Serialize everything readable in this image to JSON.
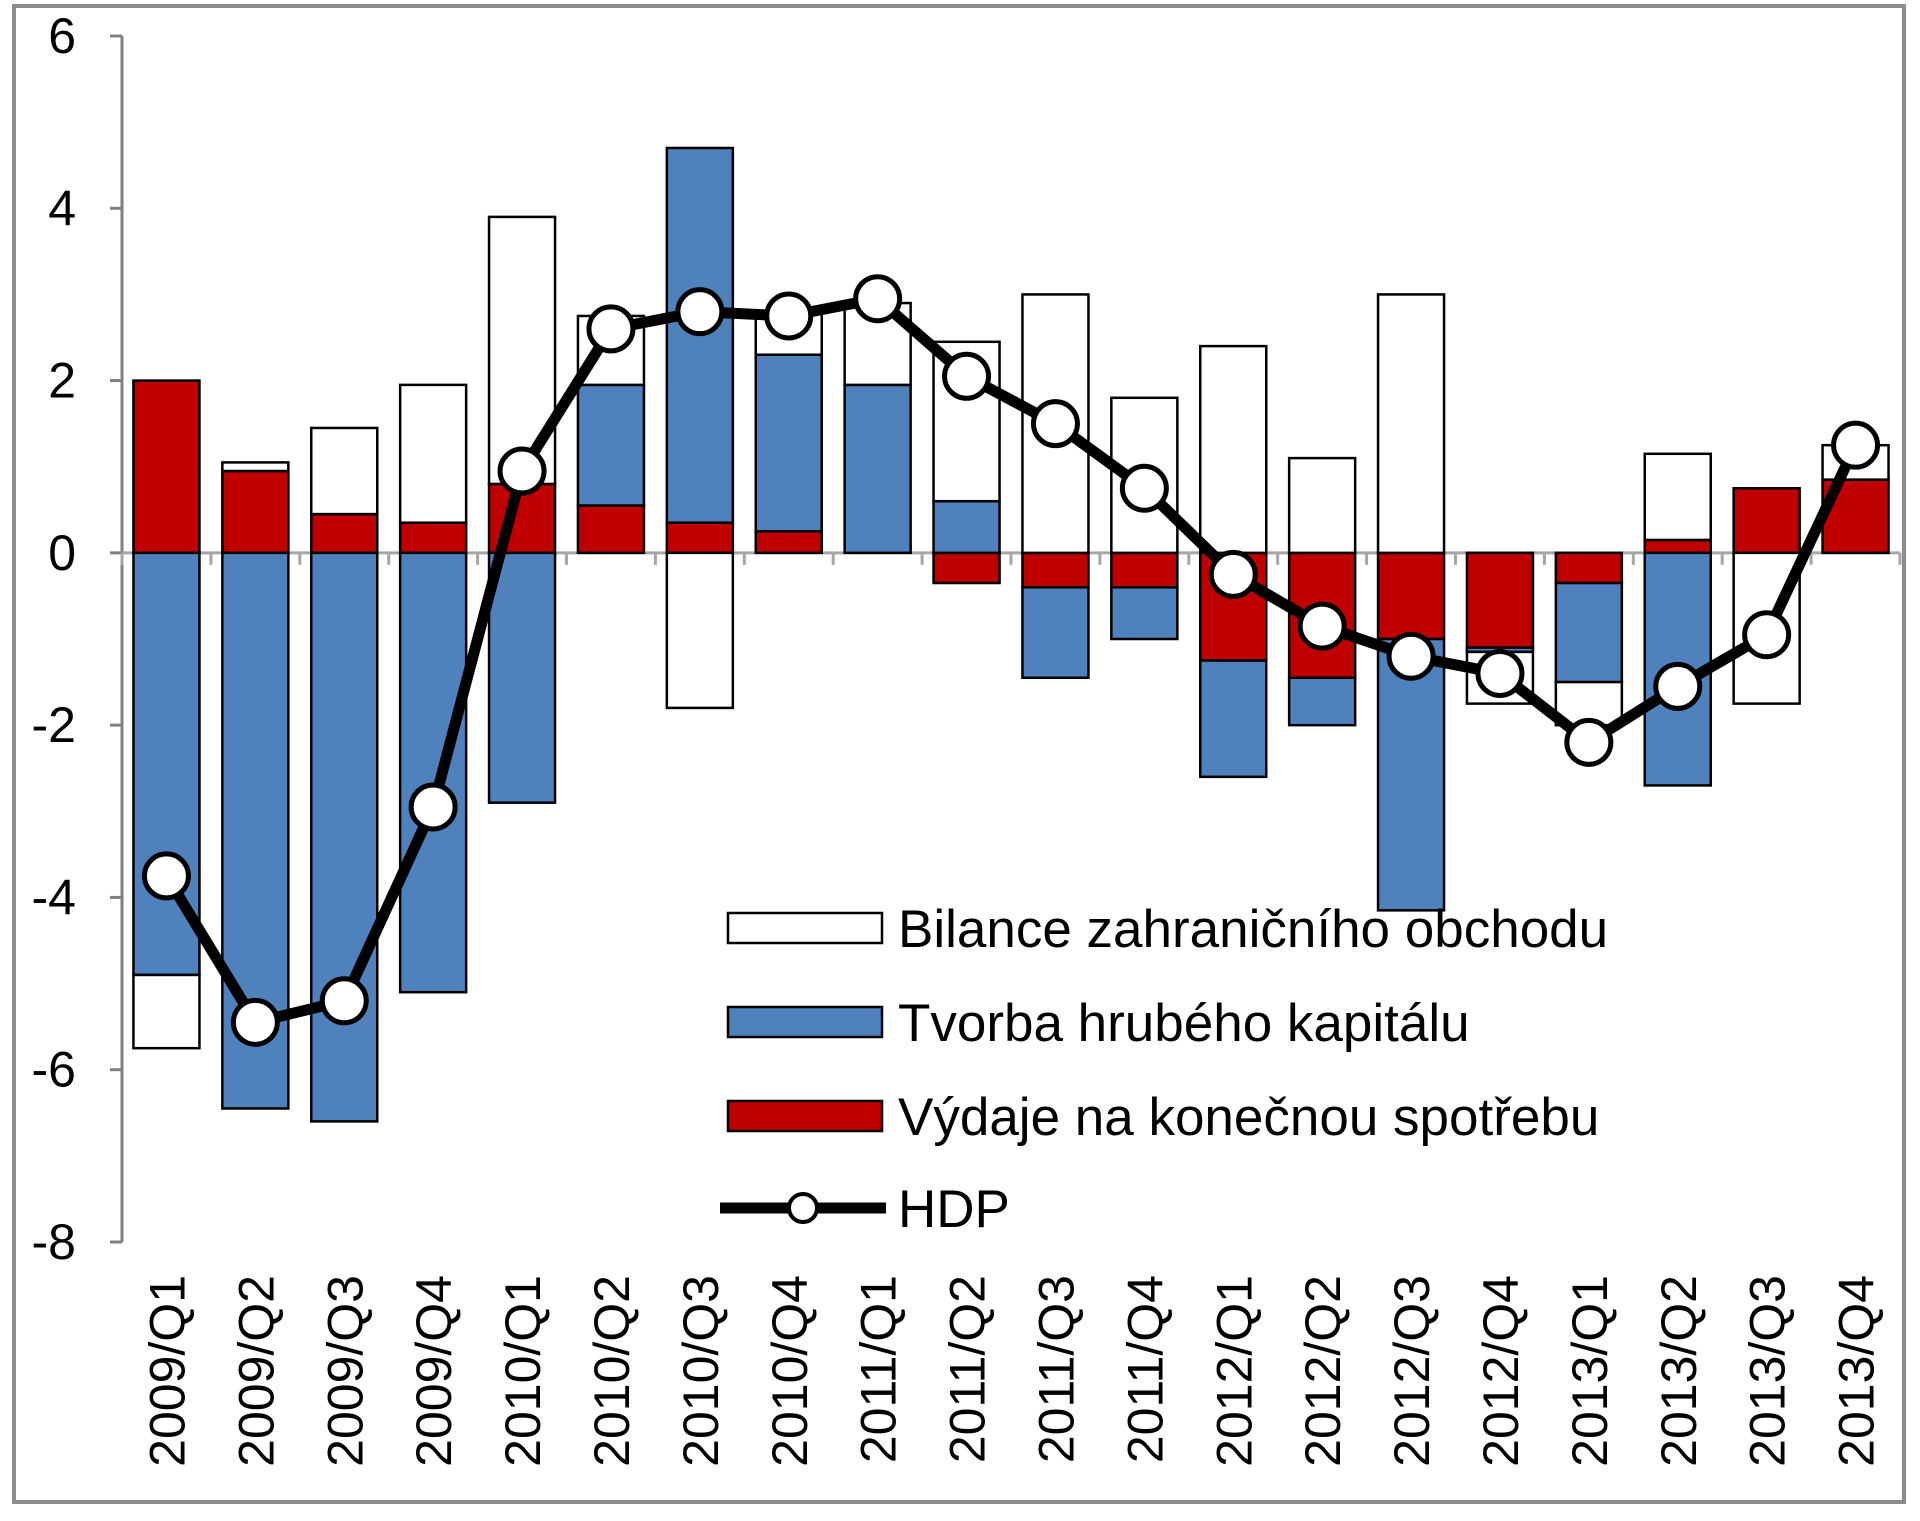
{
  "chart_data": {
    "type": "bar",
    "stacked": true,
    "categories": [
      "2009/Q1",
      "2009/Q2",
      "2009/Q3",
      "2009/Q4",
      "2010/Q1",
      "2010/Q2",
      "2010/Q3",
      "2010/Q4",
      "2011/Q1",
      "2011/Q2",
      "2011/Q3",
      "2011/Q4",
      "2012/Q1",
      "2012/Q2",
      "2012/Q3",
      "2012/Q4",
      "2013/Q1",
      "2013/Q2",
      "2013/Q3",
      "2013/Q4"
    ],
    "series": [
      {
        "name": "Výdaje na konečnou spotřebu",
        "type": "bar",
        "color": "#c00000",
        "values": [
          2.0,
          0.95,
          0.45,
          0.35,
          0.8,
          0.55,
          0.35,
          0.25,
          0.0,
          -0.35,
          -0.4,
          -0.4,
          -1.25,
          -1.45,
          -1.0,
          -1.1,
          -0.35,
          0.15,
          0.75,
          0.85
        ]
      },
      {
        "name": "Tvorba hrubého kapitálu",
        "type": "bar",
        "color": "#4f81bd",
        "values": [
          -4.9,
          -6.45,
          -6.6,
          -5.1,
          -2.9,
          1.4,
          4.35,
          2.05,
          1.95,
          0.6,
          -1.05,
          -0.6,
          -1.35,
          -0.55,
          -3.15,
          -0.05,
          -1.15,
          -2.7,
          0.0,
          0.0
        ]
      },
      {
        "name": "Bilance zahraničního obchodu",
        "type": "bar",
        "color": "#ffffff",
        "values": [
          -0.85,
          0.1,
          1.0,
          1.6,
          3.1,
          0.8,
          -1.8,
          0.5,
          0.95,
          1.85,
          3.0,
          1.8,
          2.4,
          1.1,
          3.0,
          -0.6,
          -0.5,
          1.0,
          -1.75,
          0.4
        ]
      },
      {
        "name": "HDP",
        "type": "line",
        "color": "#000000",
        "values": [
          -3.75,
          -5.45,
          -5.2,
          -2.95,
          0.95,
          2.6,
          2.8,
          2.75,
          2.95,
          2.05,
          1.5,
          0.75,
          -0.25,
          -0.85,
          -1.2,
          -1.4,
          -2.2,
          -1.55,
          -0.95,
          1.25
        ]
      }
    ],
    "title": "",
    "xlabel": "",
    "ylabel": "",
    "ylim": [
      -8,
      6
    ],
    "yticks": [
      -8,
      -6,
      -4,
      -2,
      0,
      2,
      4,
      6
    ],
    "ytick_labels": [
      "-8",
      "-6",
      "-4",
      "-2",
      "0",
      "2",
      "4",
      "6"
    ],
    "grid": false,
    "legend_position": "bottom-right inside plot",
    "legend_order": [
      "Bilance zahraničního obchodu",
      "Tvorba hrubého kapitálu",
      "Výdaje na konečnou spotřebu",
      "HDP"
    ]
  }
}
